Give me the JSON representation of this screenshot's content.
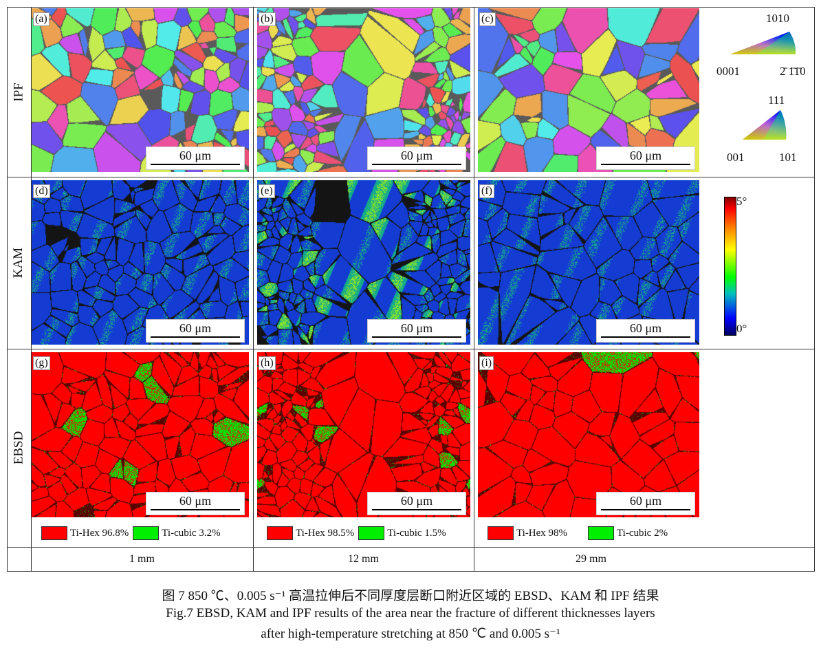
{
  "rows": [
    "IPF",
    "KAM",
    "EBSD"
  ],
  "columns": [
    "1 mm",
    "12 mm",
    "29 mm"
  ],
  "panels": {
    "ipf": [
      "(a)",
      "(b)",
      "(c)"
    ],
    "kam": [
      "(d)",
      "(e)",
      "(f)"
    ],
    "ebsd": [
      "(g)",
      "(h)",
      "(i)"
    ]
  },
  "scale_bar": "60 μm",
  "phase_legend": [
    {
      "hex": "Ti-Hex 96.8%",
      "cubic": "Ti-cubic 3.2%"
    },
    {
      "hex": "Ti-Hex 98.5%",
      "cubic": "Ti-cubic 1.5%"
    },
    {
      "hex": "Ti-Hex 98%",
      "cubic": "Ti-cubic 2%"
    }
  ],
  "phase_colors": {
    "hex": "#ff0000",
    "cubic": "#00ee00"
  },
  "ipf_key_hcp": {
    "top": "1010",
    "left": "0001",
    "right": "2̄ 1̄1̄0"
  },
  "ipf_key_hcp_right": "2110",
  "ipf_key_cubic": {
    "top": "111",
    "left": "001",
    "right": "101"
  },
  "kam_scale": {
    "max": "5°",
    "min": "0°"
  },
  "caption": {
    "zh": "图 7  850 ℃、0.005 s⁻¹ 高温拉伸后不同厚度层断口附近区域的 EBSD、KAM 和 IPF 结果",
    "en1": "Fig.7  EBSD, KAM and IPF results of the area near the fracture of different thicknesses layers",
    "en2": "after high-temperature stretching at 850 ℃ and 0.005 s⁻¹"
  }
}
